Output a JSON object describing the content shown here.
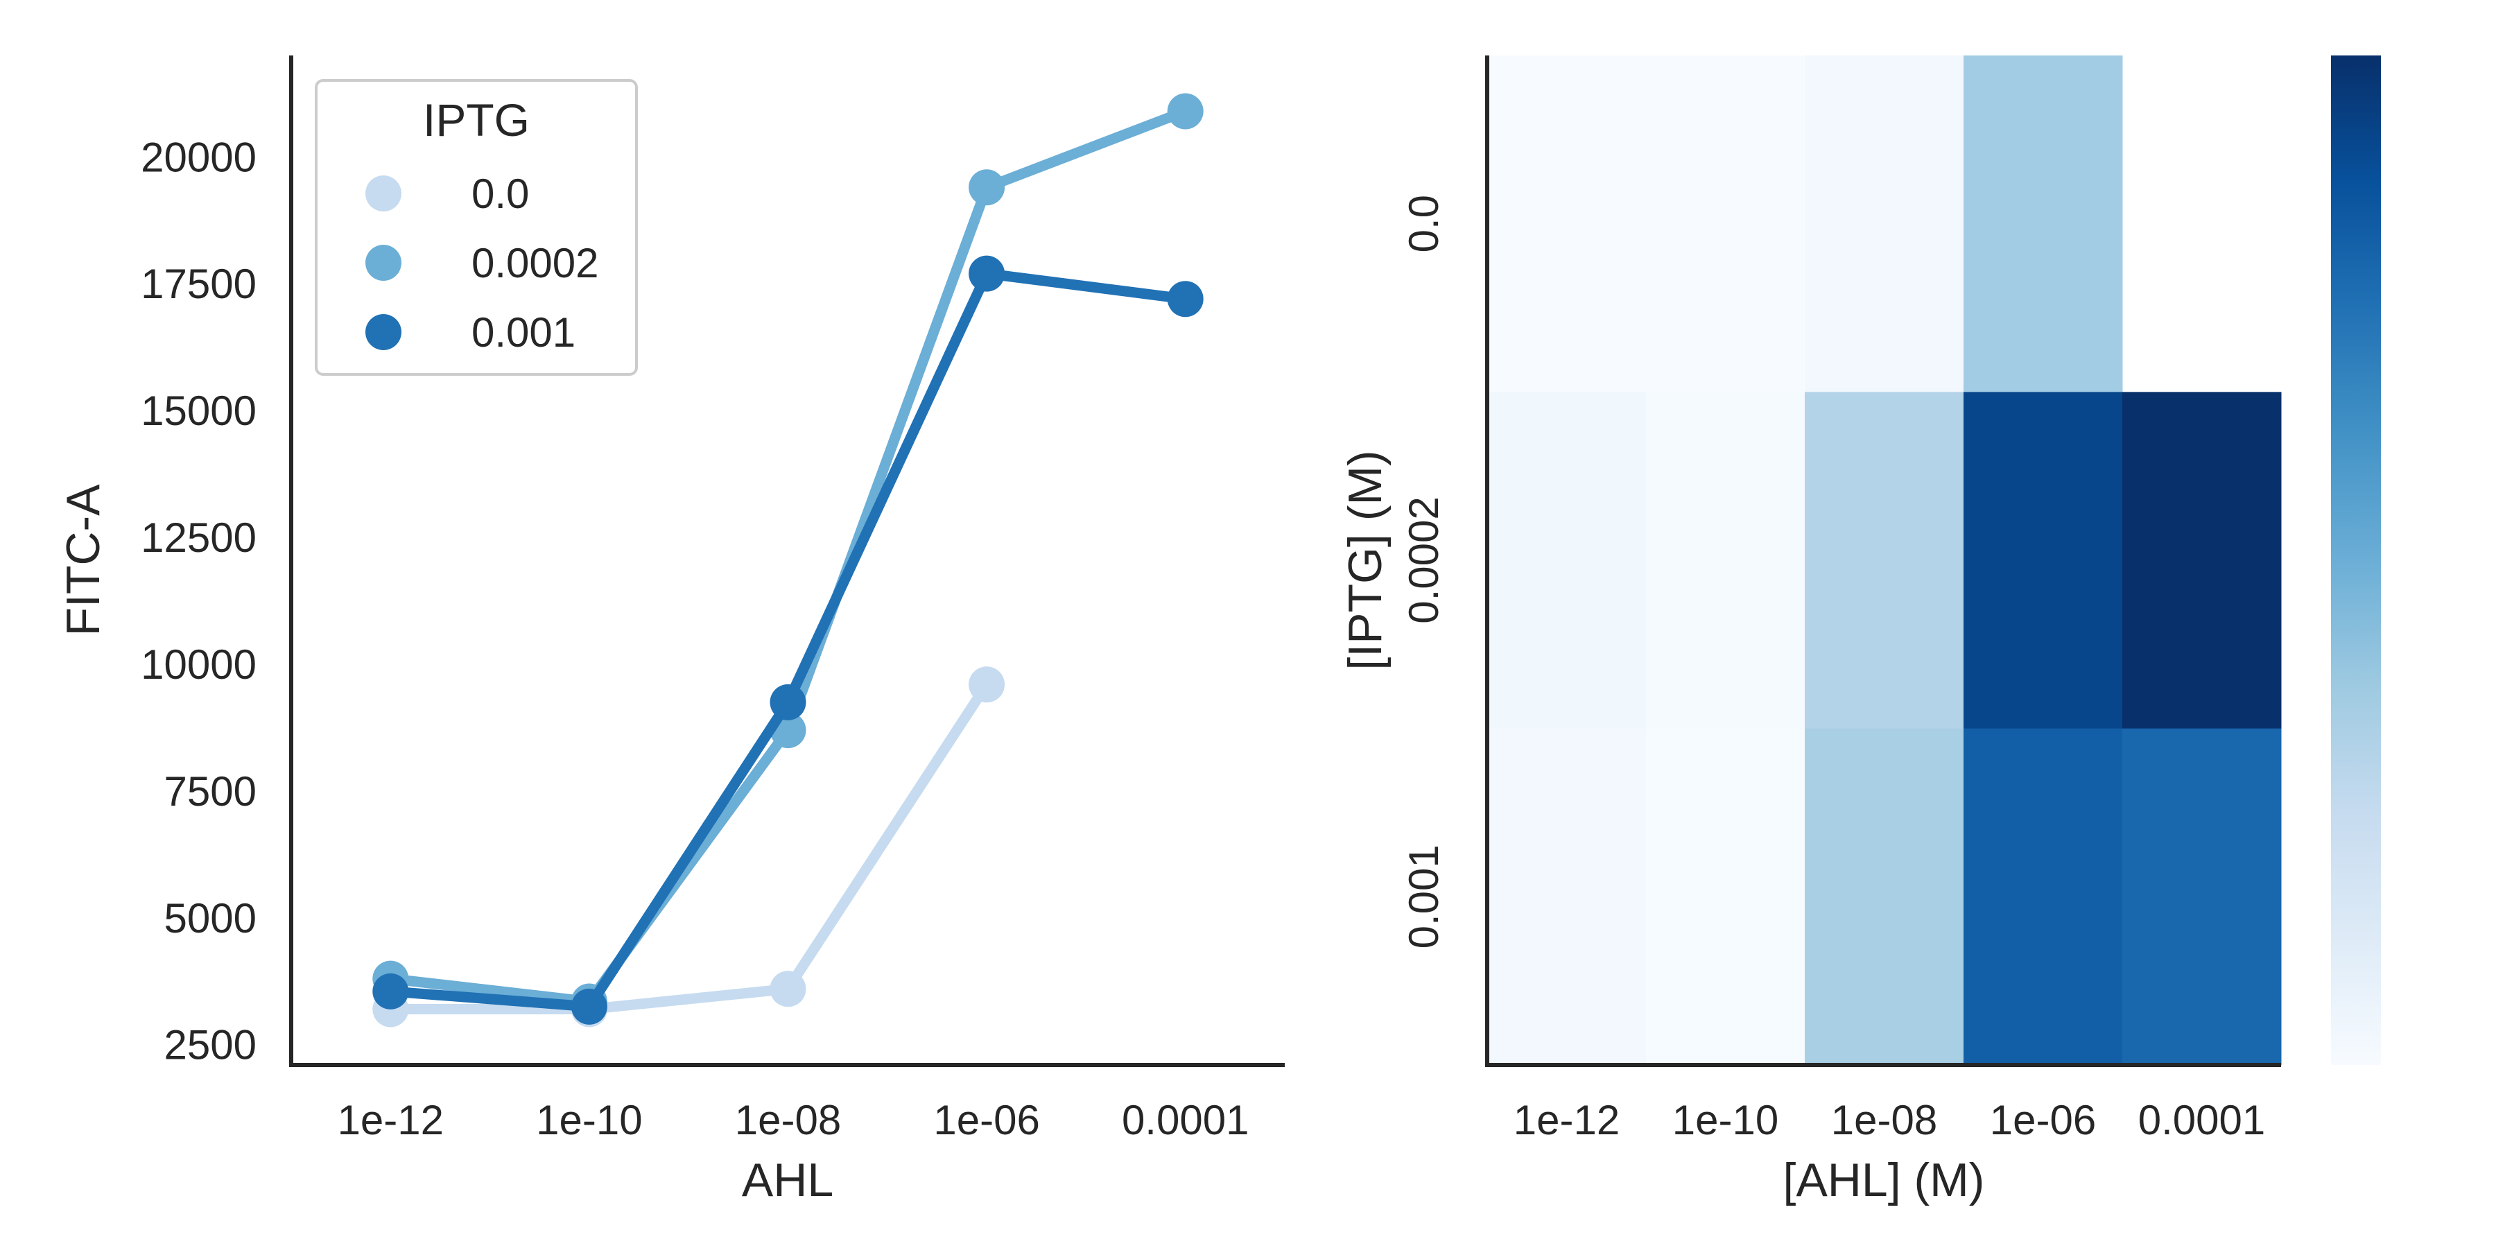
{
  "chart_data": [
    {
      "type": "line",
      "xlabel": "AHL",
      "ylabel": "FITC-A",
      "categories": [
        "1e-12",
        "1e-10",
        "1e-08",
        "1e-06",
        "0.0001"
      ],
      "ylim": [
        2100,
        22000
      ],
      "yticks": [
        "2500",
        "5000",
        "7500",
        "10000",
        "12500",
        "15000",
        "17500",
        "20000"
      ],
      "legend": {
        "title": "IPTG",
        "placement": "top-left"
      },
      "series": [
        {
          "name": "0.0",
          "color": "#c6dbef",
          "values": [
            3200,
            3200,
            3600,
            9600,
            null
          ]
        },
        {
          "name": "0.0002",
          "color": "#6baed6",
          "values": [
            3800,
            3350,
            8700,
            19400,
            20900
          ]
        },
        {
          "name": "0.001",
          "color": "#2171b5",
          "values": [
            3550,
            3250,
            9250,
            17700,
            17200
          ]
        }
      ]
    },
    {
      "type": "heatmap",
      "xlabel": "[AHL] (M)",
      "ylabel": "[IPTG] (M)",
      "xcategories": [
        "1e-12",
        "1e-10",
        "1e-08",
        "1e-06",
        "0.0001"
      ],
      "ycategories": [
        "0.0",
        "0.0002",
        "0.001"
      ],
      "colormap": "Blues",
      "vrange": [
        3200,
        20900
      ],
      "values": [
        [
          3200,
          3200,
          3600,
          9600,
          null
        ],
        [
          3800,
          3350,
          8700,
          19400,
          20900
        ],
        [
          3550,
          3250,
          9250,
          17700,
          17200
        ]
      ],
      "colorbar": true
    }
  ]
}
